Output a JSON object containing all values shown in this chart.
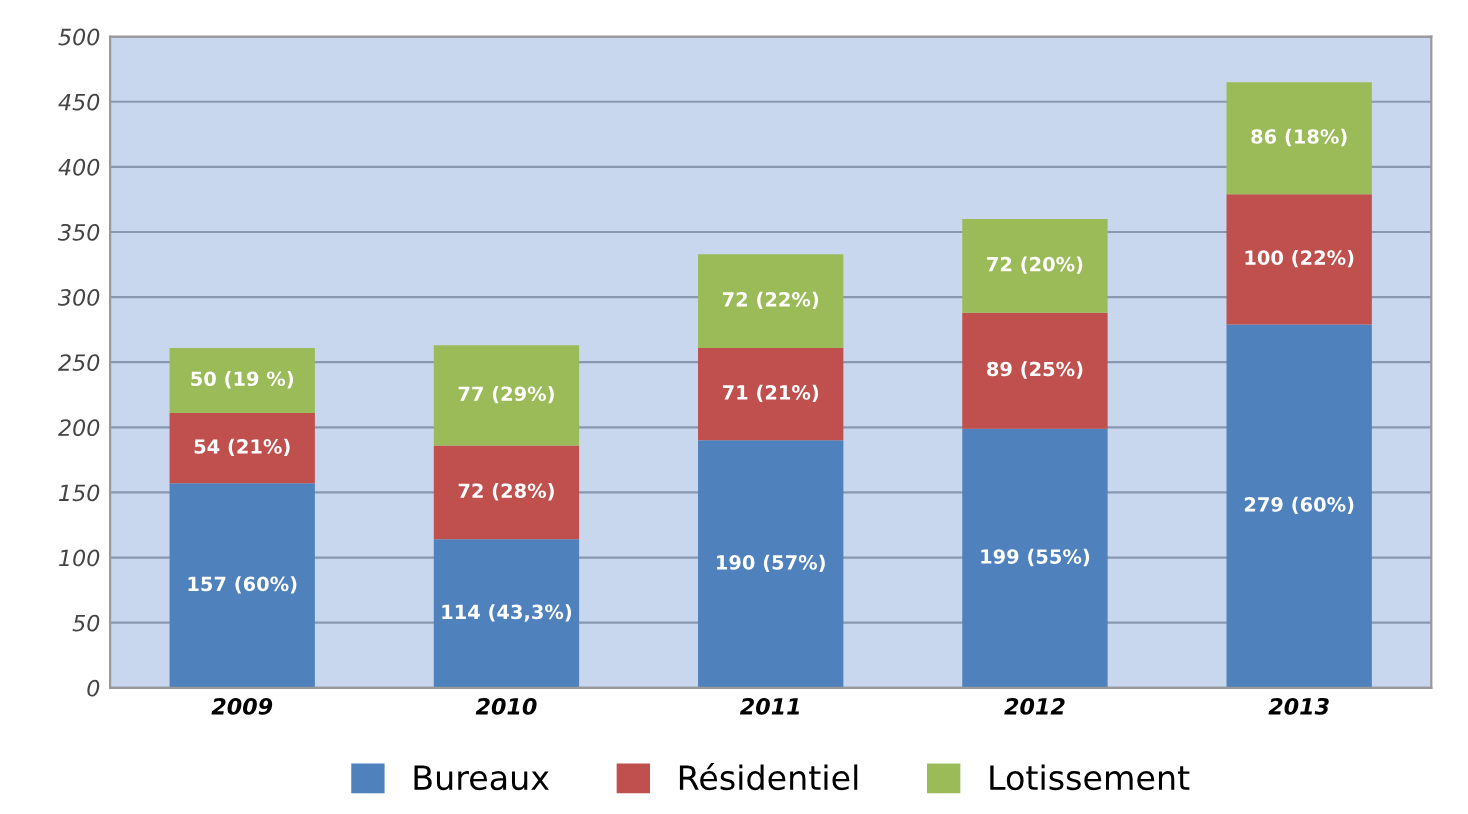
{
  "chart_data": {
    "type": "bar",
    "stacked": true,
    "categories": [
      "2009",
      "2010",
      "2011",
      "2012",
      "2013"
    ],
    "series": [
      {
        "name": "Bureaux",
        "color": "#4f81bd",
        "values": [
          157,
          114,
          190,
          199,
          279
        ],
        "value_labels": [
          "157 (60%)",
          "114 (43,3%)",
          "190 (57%)",
          "199 (55%)",
          "279 (60%)"
        ]
      },
      {
        "name": "Résidentiel",
        "color": "#c0504d",
        "values": [
          54,
          72,
          71,
          89,
          100
        ],
        "value_labels": [
          "54 (21%)",
          "72 (28%)",
          "71 (21%)",
          "89 (25%)",
          "100 (22%)"
        ]
      },
      {
        "name": "Lotissement",
        "color": "#9bbb59",
        "values": [
          50,
          77,
          72,
          72,
          86
        ],
        "value_labels": [
          "50 (19 %)",
          "77 (29%)",
          "72 (22%)",
          "72 (20%)",
          "86 (18%)"
        ]
      }
    ],
    "ylim": [
      0,
      500
    ],
    "yticks": [
      0,
      50,
      100,
      150,
      200,
      250,
      300,
      350,
      400,
      450,
      500
    ],
    "grid": "y",
    "legend": "bottom"
  }
}
